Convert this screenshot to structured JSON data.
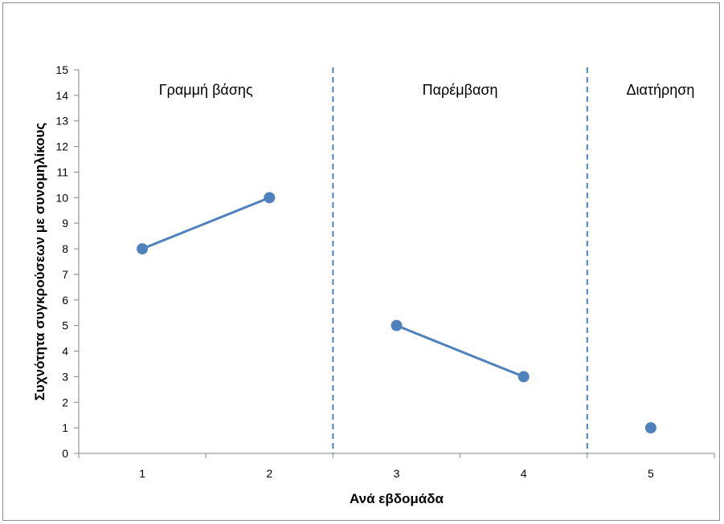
{
  "chart_data": {
    "type": "line",
    "xlabel": "Ανά εβδομάδα",
    "ylabel": "Συχνότητα συγκρούσεων με συνομηλίκους",
    "x_categories": [
      "1",
      "2",
      "3",
      "4",
      "5"
    ],
    "ylim": [
      0,
      15
    ],
    "ytick_step": 1,
    "grid": false,
    "legend": "none",
    "phases": [
      {
        "label": "Γραμμή βάσης",
        "x": [
          1,
          2
        ],
        "y": [
          8,
          10
        ]
      },
      {
        "label": "Παρέμβαση",
        "x": [
          3,
          4
        ],
        "y": [
          5,
          3
        ]
      },
      {
        "label": "Διατήρηση",
        "x": [
          5
        ],
        "y": [
          1
        ]
      }
    ],
    "phase_change_lines": [
      2.5,
      4.5
    ],
    "colors": {
      "series": "#4f81bd",
      "axis": "#868686"
    }
  }
}
